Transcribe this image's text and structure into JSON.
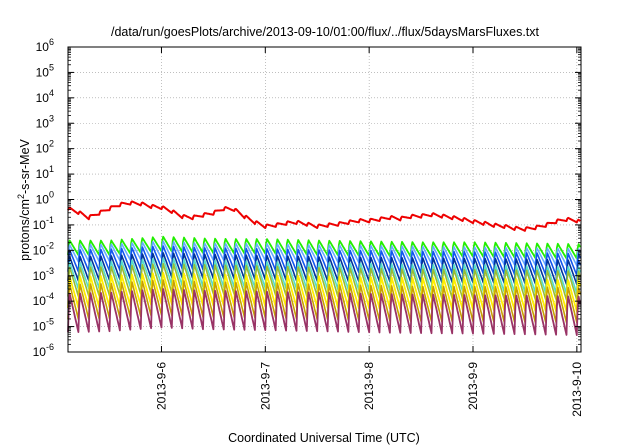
{
  "chart_data": {
    "type": "line",
    "title": "/data/run/goesPlots/archive/2013-09-10/01:00/flux/../flux/5daysMarsFluxes.txt",
    "xlabel": "Coordinated Universal Time (UTC)",
    "ylabel": {
      "prefix": "protons/cm",
      "sup": "2",
      "suffix": "-s-sr-MeV"
    },
    "y_scale": "log",
    "ylim": [
      1e-06,
      1000000.0
    ],
    "y_ticks": [
      {
        "base": "10",
        "exp": "-6"
      },
      {
        "base": "10",
        "exp": "-5"
      },
      {
        "base": "10",
        "exp": "-4"
      },
      {
        "base": "10",
        "exp": "-3"
      },
      {
        "base": "10",
        "exp": "-2"
      },
      {
        "base": "10",
        "exp": "-1"
      },
      {
        "base": "10",
        "exp": "0"
      },
      {
        "base": "10",
        "exp": "1"
      },
      {
        "base": "10",
        "exp": "2"
      },
      {
        "base": "10",
        "exp": "3"
      },
      {
        "base": "10",
        "exp": "4"
      },
      {
        "base": "10",
        "exp": "5"
      },
      {
        "base": "10",
        "exp": "6"
      }
    ],
    "x_range_days": [
      5.1,
      10.04
    ],
    "x_ticks": [
      {
        "label": "2013-9-6",
        "day": 6
      },
      {
        "label": "2013-9-7",
        "day": 7
      },
      {
        "label": "2013-9-8",
        "day": 8
      },
      {
        "label": "2013-9-9",
        "day": 9
      },
      {
        "label": "2013-9-10",
        "day": 10
      }
    ],
    "grid": true,
    "legend": "none",
    "sawtooth_period_days": 0.1,
    "series": [
      {
        "color": "#ee0000",
        "width": 2.0,
        "points": [
          [
            5.1,
            0.45
          ],
          [
            5.2,
            0.32
          ],
          [
            5.3,
            0.2
          ],
          [
            5.4,
            0.3
          ],
          [
            5.5,
            0.45
          ],
          [
            5.6,
            0.65
          ],
          [
            5.7,
            0.75
          ],
          [
            5.8,
            0.7
          ],
          [
            5.9,
            0.55
          ],
          [
            6.0,
            0.5
          ],
          [
            6.1,
            0.35
          ],
          [
            6.2,
            0.22
          ],
          [
            6.3,
            0.2
          ],
          [
            6.4,
            0.25
          ],
          [
            6.5,
            0.3
          ],
          [
            6.6,
            0.45
          ],
          [
            6.7,
            0.42
          ],
          [
            6.8,
            0.22
          ],
          [
            6.9,
            0.13
          ],
          [
            7.0,
            0.09
          ],
          [
            7.1,
            0.1
          ],
          [
            7.2,
            0.12
          ],
          [
            7.3,
            0.13
          ],
          [
            7.4,
            0.11
          ],
          [
            7.5,
            0.09
          ],
          [
            7.6,
            0.1
          ],
          [
            7.7,
            0.11
          ],
          [
            7.8,
            0.13
          ],
          [
            7.9,
            0.15
          ],
          [
            8.0,
            0.15
          ],
          [
            8.1,
            0.17
          ],
          [
            8.2,
            0.2
          ],
          [
            8.3,
            0.18
          ],
          [
            8.4,
            0.22
          ],
          [
            8.5,
            0.23
          ],
          [
            8.6,
            0.26
          ],
          [
            8.7,
            0.23
          ],
          [
            8.8,
            0.2
          ],
          [
            8.9,
            0.17
          ],
          [
            9.0,
            0.14
          ],
          [
            9.1,
            0.12
          ],
          [
            9.2,
            0.1
          ],
          [
            9.3,
            0.09
          ],
          [
            9.4,
            0.075
          ],
          [
            9.5,
            0.07
          ],
          [
            9.6,
            0.08
          ],
          [
            9.7,
            0.1
          ],
          [
            9.8,
            0.14
          ],
          [
            9.9,
            0.17
          ],
          [
            10.0,
            0.15
          ],
          [
            10.04,
            0.13
          ]
        ],
        "osc": 0.4
      },
      {
        "color": "#22ee00",
        "width": 1.8,
        "points": [
          [
            5.1,
            0.014
          ],
          [
            5.5,
            0.014
          ],
          [
            6.0,
            0.02
          ],
          [
            6.4,
            0.017
          ],
          [
            6.7,
            0.016
          ],
          [
            7.0,
            0.016
          ],
          [
            7.5,
            0.014
          ],
          [
            8.0,
            0.013
          ],
          [
            8.5,
            0.012
          ],
          [
            9.0,
            0.012
          ],
          [
            9.5,
            0.011
          ],
          [
            10.04,
            0.01
          ]
        ],
        "osc": 0.6
      },
      {
        "color": "#66aaff",
        "width": 1.6,
        "points": [
          [
            5.1,
            0.0085
          ],
          [
            5.5,
            0.009
          ],
          [
            6.0,
            0.012
          ],
          [
            6.4,
            0.01
          ],
          [
            7.0,
            0.0095
          ],
          [
            7.5,
            0.0085
          ],
          [
            8.0,
            0.008
          ],
          [
            8.5,
            0.0075
          ],
          [
            9.0,
            0.007
          ],
          [
            9.5,
            0.0065
          ],
          [
            10.04,
            0.006
          ]
        ],
        "osc": 0.7
      },
      {
        "color": "#1155ee",
        "width": 1.6,
        "points": [
          [
            5.1,
            0.0045
          ],
          [
            5.5,
            0.0048
          ],
          [
            6.0,
            0.0065
          ],
          [
            6.4,
            0.0055
          ],
          [
            7.0,
            0.005
          ],
          [
            7.5,
            0.0045
          ],
          [
            8.0,
            0.0042
          ],
          [
            8.5,
            0.004
          ],
          [
            9.0,
            0.0038
          ],
          [
            9.5,
            0.0035
          ],
          [
            10.04,
            0.0032
          ]
        ],
        "osc": 0.9
      },
      {
        "color": "#003399",
        "width": 1.6,
        "points": [
          [
            5.1,
            0.0022
          ],
          [
            5.5,
            0.0024
          ],
          [
            6.0,
            0.0032
          ],
          [
            6.4,
            0.0028
          ],
          [
            7.0,
            0.0025
          ],
          [
            7.5,
            0.0022
          ],
          [
            8.0,
            0.0021
          ],
          [
            8.5,
            0.002
          ],
          [
            9.0,
            0.0019
          ],
          [
            9.5,
            0.0018
          ],
          [
            10.04,
            0.0016
          ]
        ],
        "osc": 1.0
      },
      {
        "color": "#55ddcc",
        "width": 1.6,
        "points": [
          [
            5.1,
            0.0012
          ],
          [
            5.5,
            0.0013
          ],
          [
            6.0,
            0.0018
          ],
          [
            6.4,
            0.0015
          ],
          [
            7.0,
            0.0013
          ],
          [
            7.5,
            0.0012
          ],
          [
            8.0,
            0.0011
          ],
          [
            8.5,
            0.001
          ],
          [
            9.0,
            0.001
          ],
          [
            9.5,
            0.0009
          ],
          [
            10.04,
            0.0008
          ]
        ],
        "osc": 1.1
      },
      {
        "color": "#99bb33",
        "width": 1.6,
        "points": [
          [
            5.1,
            0.0007
          ],
          [
            5.5,
            0.00075
          ],
          [
            6.0,
            0.001
          ],
          [
            6.4,
            0.0009
          ],
          [
            7.0,
            0.0008
          ],
          [
            7.5,
            0.0007
          ],
          [
            8.0,
            0.00065
          ],
          [
            8.5,
            0.0006
          ],
          [
            9.0,
            0.00058
          ],
          [
            9.5,
            0.00055
          ],
          [
            10.04,
            0.0005
          ]
        ],
        "osc": 1.2
      },
      {
        "color": "#ffee00",
        "width": 1.8,
        "points": [
          [
            5.1,
            0.00028
          ],
          [
            5.5,
            0.0003
          ],
          [
            6.0,
            0.0004
          ],
          [
            6.4,
            0.00035
          ],
          [
            7.0,
            0.00032
          ],
          [
            7.5,
            0.00029
          ],
          [
            8.0,
            0.00027
          ],
          [
            8.5,
            0.00025
          ],
          [
            9.0,
            0.00024
          ],
          [
            9.5,
            0.00022
          ],
          [
            10.04,
            0.0002
          ]
        ],
        "osc": 1.3
      },
      {
        "color": "#c8a000",
        "width": 1.6,
        "points": [
          [
            5.1,
            0.00012
          ],
          [
            5.5,
            0.00013
          ],
          [
            6.0,
            0.00018
          ],
          [
            6.4,
            0.00015
          ],
          [
            7.0,
            0.00014
          ],
          [
            7.5,
            0.00012
          ],
          [
            8.0,
            0.00011
          ],
          [
            8.5,
            0.0001
          ],
          [
            9.0,
            0.0001
          ],
          [
            9.5,
            9.5e-05
          ],
          [
            10.04,
            9e-05
          ]
        ],
        "osc": 1.45
      },
      {
        "color": "#993366",
        "width": 1.8,
        "points": [
          [
            5.1,
            4.5e-05
          ],
          [
            5.5,
            5e-05
          ],
          [
            6.0,
            7e-05
          ],
          [
            6.4,
            6e-05
          ],
          [
            7.0,
            5.5e-05
          ],
          [
            7.5,
            5e-05
          ],
          [
            8.0,
            4.5e-05
          ],
          [
            8.5,
            4.2e-05
          ],
          [
            9.0,
            4e-05
          ],
          [
            9.5,
            3.8e-05
          ],
          [
            10.04,
            3.5e-05
          ]
        ],
        "osc": 1.6
      }
    ]
  }
}
